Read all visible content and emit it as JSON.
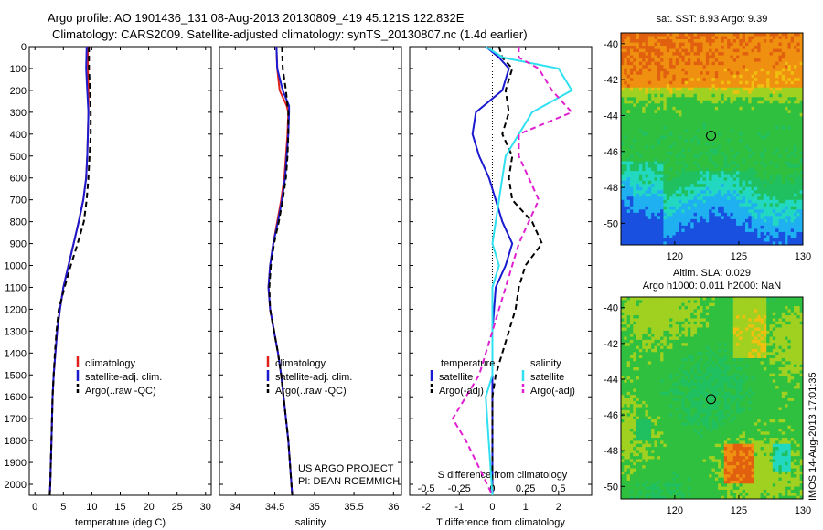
{
  "header": {
    "title_line1": "Argo profile: AO 1901436_131 08-Aug-2013 20130809_419 45.121S 122.832E",
    "title_line2": "Climatology: CARS2009. Satellite-adjusted climatology: synTS_20130807.nc (1.4d earlier)"
  },
  "colors": {
    "climatology": "#e0201a",
    "satellite": "#1a1ad0",
    "argo": "#000000",
    "sat_salinity": "#30e0f0",
    "argo_salinity": "#e020d0"
  },
  "credits": {
    "line1": "US ARGO PROJECT",
    "line2": "PI: DEAN ROEMMICH",
    "vertical": "IMOS 14-Aug-2013 17:01:35"
  },
  "chart_data": [
    {
      "type": "line",
      "id": "temperature",
      "xlabel": "temperature (deg C)",
      "ylim": [
        2050,
        0
      ],
      "xlim": [
        -1,
        31
      ],
      "xticks": [
        "0",
        "5",
        "10",
        "15",
        "20",
        "25",
        "30"
      ],
      "xtick_values": [
        0,
        5,
        10,
        15,
        20,
        25,
        30
      ],
      "yticks": [
        0,
        100,
        200,
        300,
        400,
        500,
        600,
        700,
        800,
        900,
        1000,
        1100,
        1200,
        1300,
        1400,
        1500,
        1600,
        1700,
        1800,
        1900,
        2000
      ],
      "legend": [
        "climatology",
        "satellite-adj. clim.",
        "Argo(..raw -QC)"
      ],
      "series": [
        {
          "name": "climatology",
          "color": "#e0201a",
          "dash": false,
          "points": [
            [
              9.3,
              0
            ],
            [
              9.3,
              100
            ],
            [
              9.4,
              200
            ],
            [
              9.4,
              300
            ],
            [
              9.3,
              400
            ],
            [
              9.2,
              500
            ],
            [
              9.0,
              600
            ],
            [
              8.5,
              700
            ],
            [
              7.7,
              800
            ],
            [
              6.8,
              900
            ],
            [
              5.9,
              1000
            ],
            [
              5.0,
              1100
            ],
            [
              4.4,
              1200
            ],
            [
              3.9,
              1300
            ],
            [
              3.6,
              1400
            ],
            [
              3.3,
              1500
            ],
            [
              3.1,
              1600
            ],
            [
              3.0,
              1700
            ],
            [
              2.9,
              1800
            ],
            [
              2.8,
              1900
            ],
            [
              2.7,
              2000
            ],
            [
              2.6,
              2050
            ]
          ]
        },
        {
          "name": "satellite-adj. clim.",
          "color": "#1a1ad0",
          "dash": false,
          "points": [
            [
              9.1,
              0
            ],
            [
              9.0,
              100
            ],
            [
              9.2,
              200
            ],
            [
              9.4,
              300
            ],
            [
              9.3,
              400
            ],
            [
              9.2,
              500
            ],
            [
              9.0,
              600
            ],
            [
              8.5,
              700
            ],
            [
              7.7,
              800
            ],
            [
              6.8,
              900
            ],
            [
              5.9,
              1000
            ],
            [
              5.0,
              1100
            ],
            [
              4.4,
              1200
            ],
            [
              3.9,
              1300
            ],
            [
              3.6,
              1400
            ],
            [
              3.3,
              1500
            ],
            [
              3.1,
              1600
            ],
            [
              3.0,
              1700
            ],
            [
              2.9,
              1800
            ],
            [
              2.8,
              1900
            ],
            [
              2.7,
              2000
            ],
            [
              2.6,
              2050
            ]
          ]
        },
        {
          "name": "Argo(..raw -QC)",
          "color": "#000000",
          "dash": true,
          "points": [
            [
              9.5,
              0
            ],
            [
              9.5,
              100
            ],
            [
              9.7,
              200
            ],
            [
              9.8,
              300
            ],
            [
              9.8,
              400
            ],
            [
              9.6,
              500
            ],
            [
              9.4,
              600
            ],
            [
              9.1,
              700
            ],
            [
              8.6,
              800
            ],
            [
              7.5,
              900
            ],
            [
              6.3,
              1000
            ],
            [
              5.2,
              1100
            ],
            [
              4.2,
              1200
            ],
            [
              3.8,
              1300
            ],
            [
              3.5,
              1400
            ],
            [
              3.3,
              1500
            ],
            [
              3.1,
              1600
            ],
            [
              3.0,
              1700
            ],
            [
              2.9,
              1800
            ],
            [
              2.8,
              1900
            ],
            [
              2.7,
              2000
            ],
            [
              2.6,
              2050
            ]
          ]
        }
      ]
    },
    {
      "type": "line",
      "id": "salinity",
      "xlabel": "salinity",
      "ylim": [
        2050,
        0
      ],
      "xlim": [
        33.8,
        36.1
      ],
      "xticks": [
        "34",
        "34.5",
        "35",
        "35.5",
        "36"
      ],
      "xtick_values": [
        34,
        34.5,
        35,
        35.5,
        36
      ],
      "legend": [
        "climatology",
        "satellite-adj. clim.",
        "Argo(..raw -QC)"
      ],
      "series": [
        {
          "name": "climatology",
          "color": "#e0201a",
          "dash": false,
          "points": [
            [
              34.52,
              0
            ],
            [
              34.53,
              100
            ],
            [
              34.56,
              200
            ],
            [
              34.65,
              270
            ],
            [
              34.67,
              300
            ],
            [
              34.66,
              400
            ],
            [
              34.64,
              500
            ],
            [
              34.62,
              600
            ],
            [
              34.58,
              700
            ],
            [
              34.53,
              800
            ],
            [
              34.48,
              900
            ],
            [
              34.44,
              1000
            ],
            [
              34.42,
              1100
            ],
            [
              34.44,
              1200
            ],
            [
              34.49,
              1300
            ],
            [
              34.54,
              1400
            ],
            [
              34.58,
              1500
            ],
            [
              34.61,
              1600
            ],
            [
              34.64,
              1700
            ],
            [
              34.67,
              1800
            ],
            [
              34.69,
              1900
            ],
            [
              34.71,
              2000
            ],
            [
              34.72,
              2050
            ]
          ]
        },
        {
          "name": "satellite-adj. clim.",
          "color": "#1a1ad0",
          "dash": false,
          "points": [
            [
              34.52,
              0
            ],
            [
              34.53,
              100
            ],
            [
              34.6,
              200
            ],
            [
              34.68,
              270
            ],
            [
              34.68,
              300
            ],
            [
              34.67,
              400
            ],
            [
              34.65,
              500
            ],
            [
              34.63,
              600
            ],
            [
              34.59,
              700
            ],
            [
              34.54,
              800
            ],
            [
              34.48,
              900
            ],
            [
              34.44,
              1000
            ],
            [
              34.42,
              1100
            ],
            [
              34.44,
              1200
            ],
            [
              34.49,
              1300
            ],
            [
              34.54,
              1400
            ],
            [
              34.58,
              1500
            ],
            [
              34.61,
              1600
            ],
            [
              34.64,
              1700
            ],
            [
              34.67,
              1800
            ],
            [
              34.69,
              1900
            ],
            [
              34.71,
              2000
            ],
            [
              34.72,
              2050
            ]
          ]
        },
        {
          "name": "Argo(..raw -QC)",
          "color": "#000000",
          "dash": true,
          "points": [
            [
              34.59,
              0
            ],
            [
              34.6,
              100
            ],
            [
              34.64,
              200
            ],
            [
              34.66,
              270
            ],
            [
              34.67,
              300
            ],
            [
              34.67,
              400
            ],
            [
              34.66,
              500
            ],
            [
              34.64,
              600
            ],
            [
              34.6,
              700
            ],
            [
              34.55,
              800
            ],
            [
              34.49,
              900
            ],
            [
              34.45,
              1000
            ],
            [
              34.43,
              1100
            ],
            [
              34.44,
              1200
            ],
            [
              34.49,
              1300
            ],
            [
              34.54,
              1400
            ],
            [
              34.58,
              1500
            ],
            [
              34.61,
              1600
            ],
            [
              34.64,
              1700
            ],
            [
              34.67,
              1800
            ],
            [
              34.69,
              1900
            ],
            [
              34.71,
              2000
            ],
            [
              34.72,
              2050
            ]
          ]
        }
      ]
    },
    {
      "type": "line",
      "id": "difference",
      "xlabel": "T difference from climatology",
      "xlabel_top": "S difference from climatology",
      "ylim": [
        2050,
        0
      ],
      "xlim": [
        -2.5,
        3
      ],
      "xticks": [
        "-2",
        "-1",
        "0",
        "1",
        "2"
      ],
      "xtick_values": [
        -2,
        -1,
        0,
        1,
        2
      ],
      "xticks_top": [
        "-0.5",
        "-0.25",
        "0",
        "0.25",
        "0.5"
      ],
      "xtick_top_values": [
        -0.5,
        -0.25,
        0,
        0.25,
        0.5
      ],
      "legend_title_t": "temperature",
      "legend_title_s": "salinity",
      "legend": [
        "satellite",
        "Argo(-adj)",
        "satellite",
        "Argo(-adj)"
      ],
      "series": [
        {
          "name": "satellite",
          "group": "temperature",
          "color": "#1a1ad0",
          "dash": false,
          "points": [
            [
              -0.2,
              0
            ],
            [
              0.2,
              50
            ],
            [
              0.5,
              100
            ],
            [
              0.3,
              200
            ],
            [
              -0.5,
              300
            ],
            [
              -0.6,
              400
            ],
            [
              -0.4,
              500
            ],
            [
              -0.1,
              600
            ],
            [
              0.1,
              700
            ],
            [
              0.3,
              800
            ],
            [
              0.6,
              900
            ],
            [
              0.4,
              1000
            ],
            [
              0.1,
              1100
            ],
            [
              0.0,
              1300
            ],
            [
              0.0,
              1600
            ],
            [
              0.0,
              2050
            ]
          ]
        },
        {
          "name": "Argo(-adj)",
          "group": "temperature",
          "color": "#000000",
          "dash": true,
          "points": [
            [
              0.2,
              0
            ],
            [
              0.3,
              50
            ],
            [
              0.6,
              100
            ],
            [
              0.4,
              200
            ],
            [
              0.5,
              300
            ],
            [
              0.3,
              400
            ],
            [
              0.6,
              500
            ],
            [
              0.5,
              600
            ],
            [
              0.6,
              700
            ],
            [
              1.2,
              800
            ],
            [
              1.5,
              900
            ],
            [
              1.0,
              1000
            ],
            [
              0.8,
              1100
            ],
            [
              0.7,
              1200
            ],
            [
              0.5,
              1300
            ],
            [
              0.3,
              1400
            ],
            [
              0.1,
              1500
            ],
            [
              0.0,
              1600
            ],
            [
              0.0,
              2050
            ]
          ]
        },
        {
          "name": "satellite",
          "group": "salinity",
          "color": "#30e0f0",
          "dash": false,
          "points": [
            [
              -0.05,
              0
            ],
            [
              0.08,
              50
            ],
            [
              0.5,
              100
            ],
            [
              0.6,
              200
            ],
            [
              0.3,
              300
            ],
            [
              0.2,
              400
            ],
            [
              0.1,
              500
            ],
            [
              0.05,
              700
            ],
            [
              0.0,
              900
            ],
            [
              0.05,
              1000
            ],
            [
              0.0,
              1100
            ],
            [
              0.0,
              1500
            ],
            [
              -0.05,
              1600
            ],
            [
              0.0,
              2050
            ]
          ]
        },
        {
          "name": "Argo(-adj)",
          "group": "salinity",
          "color": "#e020d0",
          "dash": true,
          "points": [
            [
              0.2,
              0
            ],
            [
              0.2,
              50
            ],
            [
              0.35,
              100
            ],
            [
              0.45,
              200
            ],
            [
              0.6,
              300
            ],
            [
              0.2,
              400
            ],
            [
              0.2,
              500
            ],
            [
              0.35,
              700
            ],
            [
              0.2,
              900
            ],
            [
              0.1,
              1100
            ],
            [
              0.0,
              1300
            ],
            [
              -0.1,
              1500
            ],
            [
              -0.3,
              1700
            ],
            [
              -0.2,
              1800
            ],
            [
              0.0,
              2050
            ]
          ]
        }
      ]
    }
  ],
  "maps": [
    {
      "id": "sst-map",
      "title": "sat. SST: 8.93 Argo: 9.39",
      "xticks": [
        "120",
        "125",
        "130"
      ],
      "xtick_values": [
        120,
        125,
        130
      ],
      "yticks": [
        "-40",
        "-42",
        "-44",
        "-46",
        "-48",
        "-50"
      ],
      "ytick_values": [
        -40,
        -42,
        -44,
        -46,
        -48,
        -50
      ],
      "xlim": [
        115.8,
        130
      ],
      "ylim": [
        -51.2,
        -39.4
      ],
      "marker": [
        122.83,
        -45.12
      ],
      "field": "sst"
    },
    {
      "id": "sla-map",
      "title_line1": "Altim. SLA: 0.029",
      "title_line2": "Argo h1000: 0.011 h2000: NaN",
      "xticks": [
        "120",
        "125",
        "130"
      ],
      "xtick_values": [
        120,
        125,
        130
      ],
      "yticks": [
        "-40",
        "-42",
        "-44",
        "-46",
        "-48",
        "-50"
      ],
      "ytick_values": [
        -40,
        -42,
        -44,
        -46,
        -48,
        -50
      ],
      "xlim": [
        115.8,
        130
      ],
      "ylim": [
        -50.7,
        -39.4
      ],
      "marker": [
        122.83,
        -45.12
      ],
      "field": "sla"
    }
  ]
}
